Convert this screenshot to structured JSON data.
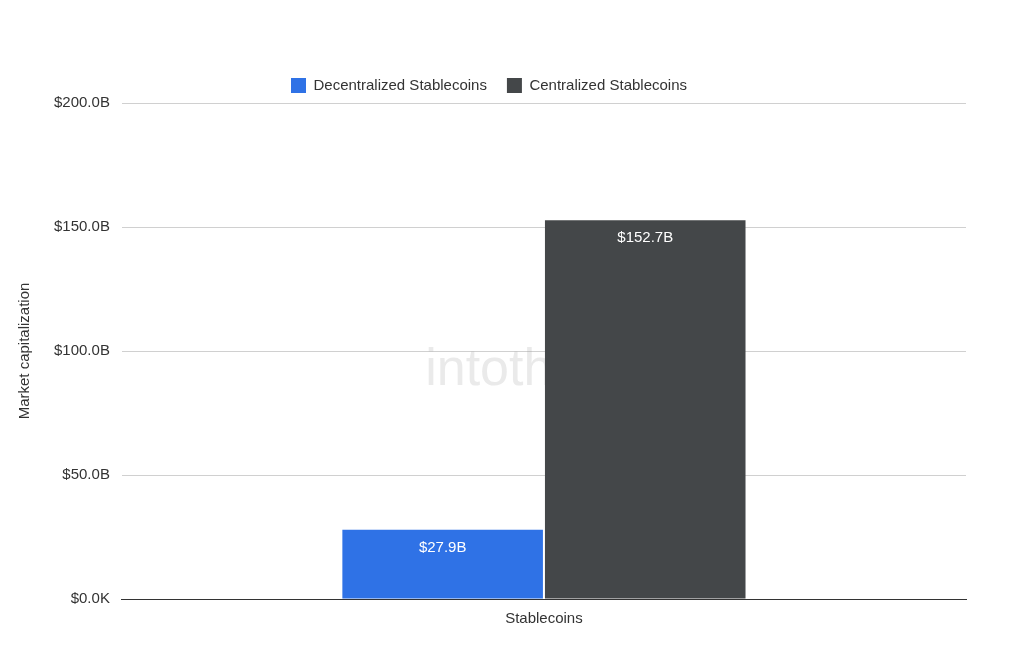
{
  "chart_data": {
    "type": "bar",
    "y_label": "Market capitalization",
    "categories": [
      "Stablecoins"
    ],
    "series": [
      {
        "name": "Decentralized Stablecoins",
        "color": "#2f72e6",
        "values": [
          27.9
        ],
        "value_labels": [
          "$27.9B"
        ]
      },
      {
        "name": "Centralized Stablecoins",
        "color": "#444749",
        "values": [
          152.7
        ],
        "value_labels": [
          "$152.7B"
        ]
      }
    ],
    "ylim": [
      0,
      200
    ],
    "yticks": [
      {
        "value": 0,
        "label": "$0.0K"
      },
      {
        "value": 50,
        "label": "$50.0B"
      },
      {
        "value": 100,
        "label": "$100.0B"
      },
      {
        "value": 150,
        "label": "$150.0B"
      },
      {
        "value": 200,
        "label": "$200.0B"
      }
    ],
    "grid": true,
    "legend": "top",
    "data_labels": true,
    "annotations": [
      "intotheblock"
    ]
  }
}
